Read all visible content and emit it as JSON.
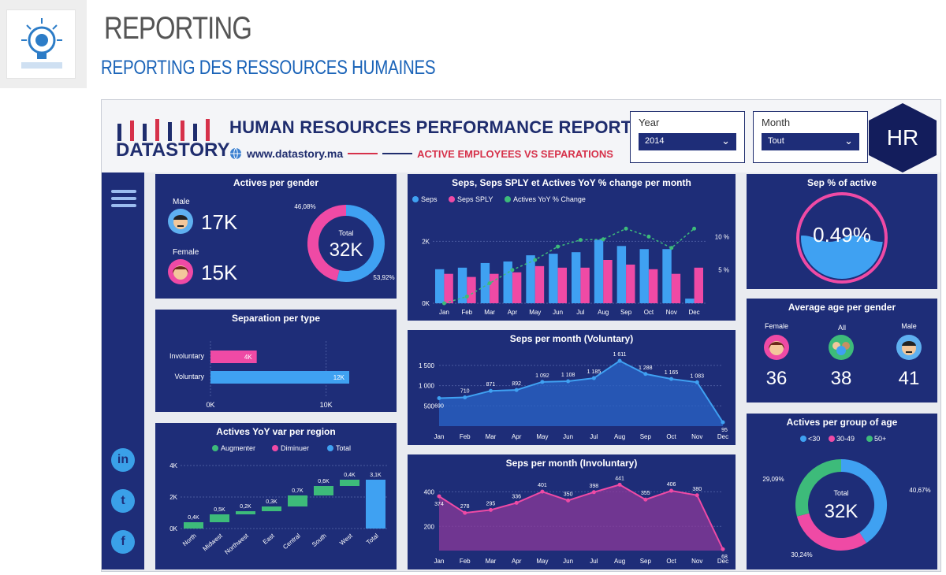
{
  "page": {
    "title": "REPORTING",
    "subtitle": "REPORTING DES RESSOURCES HUMAINES"
  },
  "header": {
    "brand": "DATASTORY",
    "report_title": "HUMAN RESOURCES PERFORMANCE REPORT",
    "url": "www.datastory.ma",
    "tagline": "ACTIVE EMPLOYEES VS SEPARATIONS",
    "badge": "HR",
    "year_label": "Year",
    "year_value": "2014",
    "month_label": "Month",
    "month_value": "Tout",
    "brand_color": "#1f2d6e",
    "accent_red": "#d6314a"
  },
  "kpi": {
    "male_label": "Male",
    "male_value": "17K",
    "female_label": "Female",
    "female_value": "15K",
    "sep_pct": "0.49%"
  },
  "avg_age": {
    "female_label": "Female",
    "all_label": "All",
    "male_label": "Male",
    "female": "36",
    "all": "38",
    "male": "41"
  },
  "icons": {
    "menu": "menu-icon",
    "linkedin": "linkedin-icon",
    "twitter": "twitter-icon",
    "facebook": "facebook-icon",
    "linkedin_glyph": "in",
    "twitter_glyph": "t",
    "facebook_glyph": "f"
  },
  "colors": {
    "panel": "#1e2d78",
    "blue": "#3fa1f2",
    "pink": "#ef4aa5",
    "green": "#3dbb7a"
  },
  "chart_data": [
    {
      "id": "actives_gender",
      "type": "pie",
      "title": "Actives per gender",
      "center_label": "Total",
      "center_value": "32K",
      "slices": [
        {
          "name": "Male",
          "value": 53.92,
          "label": "53,92%"
        },
        {
          "name": "Female",
          "value": 46.08,
          "label": "46,08%"
        }
      ]
    },
    {
      "id": "seps_month",
      "type": "bar",
      "title": "Seps, Seps SPLY et Actives YoY % change per month",
      "categories": [
        "Jan",
        "Feb",
        "Mar",
        "Apr",
        "May",
        "Jun",
        "Jul",
        "Aug",
        "Sep",
        "Oct",
        "Nov",
        "Dec"
      ],
      "y_ticks": [
        "0K",
        "2K"
      ],
      "y2_ticks": [
        "5 %",
        "10 %"
      ],
      "series": [
        {
          "name": "Seps",
          "values": [
            1100,
            1150,
            1300,
            1350,
            1550,
            1600,
            1650,
            2050,
            1850,
            1750,
            1750,
            150
          ]
        },
        {
          "name": "Seps SPLY",
          "values": [
            950,
            850,
            950,
            1000,
            1200,
            1150,
            1150,
            1400,
            1250,
            1100,
            950,
            1150
          ]
        },
        {
          "name": "Actives YoY % Change",
          "values": [
            0,
            1.0,
            3.0,
            5.0,
            6.5,
            8.5,
            9.5,
            9.6,
            11.2,
            10.0,
            8.3,
            11.2
          ]
        }
      ],
      "ylim": [
        0,
        2800
      ],
      "y2lim": [
        0,
        13
      ]
    },
    {
      "id": "sep_type",
      "type": "bar",
      "orientation": "horizontal",
      "title": "Separation per type",
      "categories": [
        "Involuntary",
        "Voluntary"
      ],
      "values": [
        4,
        12
      ],
      "data_labels": [
        "4K",
        "12K"
      ],
      "x_ticks": [
        "0K",
        "10K"
      ],
      "xlim": [
        0,
        15
      ]
    },
    {
      "id": "seps_voluntary",
      "type": "area",
      "title": "Seps per month (Voluntary)",
      "categories": [
        "Jan",
        "Feb",
        "Mar",
        "Apr",
        "May",
        "Jun",
        "Jul",
        "Aug",
        "Sep",
        "Oct",
        "Nov",
        "Dec"
      ],
      "values": [
        690,
        710,
        871,
        892,
        1092,
        1108,
        1185,
        1611,
        1288,
        1165,
        1083,
        95
      ],
      "data_labels": [
        "690",
        "710",
        "871",
        "892",
        "1 092",
        "1 108",
        "1 185",
        "1 611",
        "1 288",
        "1 165",
        "1 083",
        "95"
      ],
      "y_ticks": [
        "500",
        "1 000",
        "1 500"
      ],
      "ylim": [
        0,
        1750
      ]
    },
    {
      "id": "seps_involuntary",
      "type": "area",
      "title": "Seps per month (Involuntary)",
      "categories": [
        "Jan",
        "Feb",
        "Mar",
        "Apr",
        "May",
        "Jun",
        "Jul",
        "Aug",
        "Sep",
        "Oct",
        "Nov",
        "Dec"
      ],
      "values": [
        374,
        278,
        295,
        336,
        401,
        350,
        398,
        441,
        355,
        406,
        380,
        68
      ],
      "data_labels": [
        "374",
        "278",
        "295",
        "336",
        "401",
        "350",
        "398",
        "441",
        "355",
        "406",
        "380",
        "68"
      ],
      "y_ticks": [
        "200",
        "400"
      ],
      "ylim": [
        60,
        470
      ]
    },
    {
      "id": "region_waterfall",
      "type": "bar",
      "subtype": "waterfall",
      "title": "Actives YoY var per region",
      "legend": [
        "Augmenter",
        "Diminuer",
        "Total"
      ],
      "categories": [
        "North",
        "Midwest",
        "Northwest",
        "East",
        "Central",
        "South",
        "West",
        "Total"
      ],
      "values": [
        0.4,
        0.5,
        0.2,
        0.3,
        0.7,
        0.6,
        0.4,
        3.1
      ],
      "data_labels": [
        "0,4K",
        "0,5K",
        "0,2K",
        "0,3K",
        "0,7K",
        "0,6K",
        "0,4K",
        "3,1K"
      ],
      "y_ticks": [
        "0K",
        "2K",
        "4K"
      ],
      "ylim": [
        0,
        4
      ]
    },
    {
      "id": "age_group",
      "type": "pie",
      "title": "Actives per group of age",
      "legend": [
        "<30",
        "30-49",
        "50+"
      ],
      "center_label": "Total",
      "center_value": "32K",
      "slices": [
        {
          "name": "<30",
          "value": 40.67,
          "label": "40,67%"
        },
        {
          "name": "30-49",
          "value": 30.24,
          "label": "30,24%"
        },
        {
          "name": "50+",
          "value": 29.09,
          "label": "29,09%"
        }
      ]
    },
    {
      "id": "sep_active",
      "type": "gauge",
      "title": "Sep % of active",
      "value": 0.49
    },
    {
      "id": "avg_age_gender",
      "type": "table",
      "title": "Average age per gender"
    }
  ]
}
